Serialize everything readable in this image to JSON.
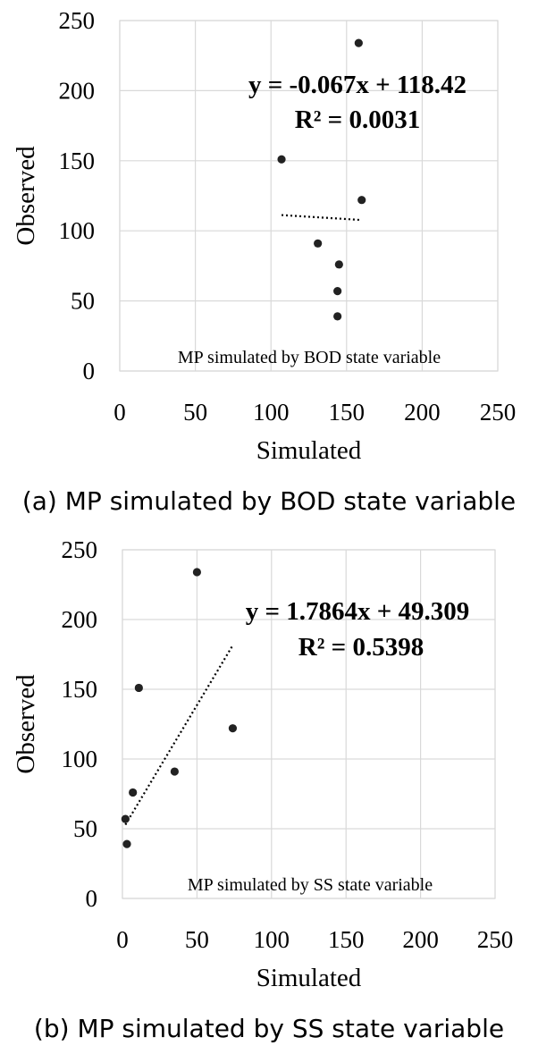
{
  "chart_data": [
    {
      "type": "scatter",
      "xlabel": "Simulated",
      "ylabel": "Observed",
      "xlim": [
        0,
        250
      ],
      "ylim": [
        0,
        250
      ],
      "xticks": [
        "0",
        "50",
        "100",
        "150",
        "200",
        "250"
      ],
      "yticks": [
        "0",
        "50",
        "100",
        "150",
        "200",
        "250"
      ],
      "grid": true,
      "points": [
        {
          "x": 158,
          "y": 234
        },
        {
          "x": 107,
          "y": 151
        },
        {
          "x": 160,
          "y": 122
        },
        {
          "x": 131,
          "y": 91
        },
        {
          "x": 145,
          "y": 76
        },
        {
          "x": 144,
          "y": 57
        },
        {
          "x": 144,
          "y": 39
        }
      ],
      "trendline": {
        "slope": -0.067,
        "intercept": 118.42,
        "x_range": [
          107,
          160
        ],
        "style": "dotted"
      },
      "equation": "y = -0.067x + 118.42",
      "r_squared": "R² = 0.0031",
      "inner_label": "MP simulated by BOD state variable",
      "caption": "(a) MP simulated by BOD state variable"
    },
    {
      "type": "scatter",
      "xlabel": "Simulated",
      "ylabel": "Observed",
      "xlim": [
        0,
        250
      ],
      "ylim": [
        0,
        250
      ],
      "xticks": [
        "0",
        "50",
        "100",
        "150",
        "200",
        "250"
      ],
      "yticks": [
        "0",
        "50",
        "100",
        "150",
        "200",
        "250"
      ],
      "grid": true,
      "points": [
        {
          "x": 50,
          "y": 234
        },
        {
          "x": 11,
          "y": 151
        },
        {
          "x": 74,
          "y": 122
        },
        {
          "x": 35,
          "y": 91
        },
        {
          "x": 7,
          "y": 76
        },
        {
          "x": 2,
          "y": 57
        },
        {
          "x": 3,
          "y": 39
        }
      ],
      "trendline": {
        "slope": 1.7864,
        "intercept": 49.309,
        "x_range": [
          2,
          74
        ],
        "style": "dotted"
      },
      "equation": "y = 1.7864x + 49.309",
      "r_squared": "R² = 0.5398",
      "inner_label": "MP simulated by SS state variable",
      "caption": "(b) MP simulated by SS state variable"
    }
  ]
}
